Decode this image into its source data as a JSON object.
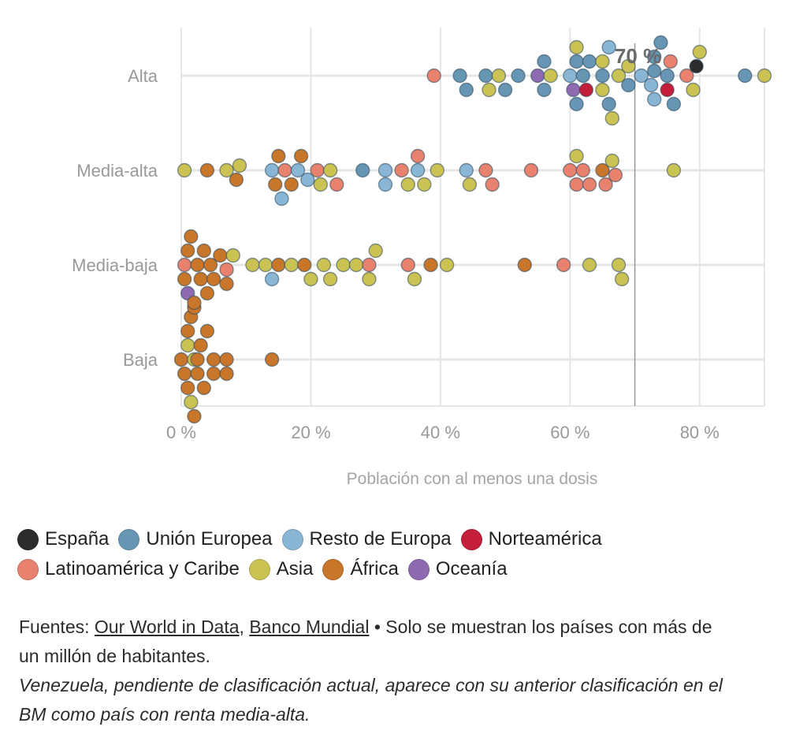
{
  "chart_data": {
    "type": "scatter",
    "title": "",
    "xlabel": "Población con al menos una dosis",
    "ylabel": "",
    "xlim": [
      0,
      90
    ],
    "categories": [
      "Alta",
      "Media-alta",
      "Media-baja",
      "Baja"
    ],
    "x_ticks": [
      "0 %",
      "20 %",
      "40 %",
      "60 %",
      "80 %"
    ],
    "x_tick_values": [
      0,
      20,
      40,
      60,
      80
    ],
    "reference_line": {
      "x": 70,
      "label": "70 %"
    },
    "grid": true,
    "legend_position": "bottom",
    "series": [
      {
        "name": "España",
        "color": "#2b2b2b",
        "points": [
          {
            "group": "Alta",
            "x": 79.5
          }
        ]
      },
      {
        "name": "Unión Europea",
        "color": "#6796b5",
        "points": [
          {
            "group": "Alta",
            "x": 43
          },
          {
            "group": "Alta",
            "x": 44
          },
          {
            "group": "Alta",
            "x": 47
          },
          {
            "group": "Alta",
            "x": 50
          },
          {
            "group": "Alta",
            "x": 52
          },
          {
            "group": "Alta",
            "x": 56
          },
          {
            "group": "Alta",
            "x": 56
          },
          {
            "group": "Alta",
            "x": 61
          },
          {
            "group": "Alta",
            "x": 61
          },
          {
            "group": "Alta",
            "x": 62
          },
          {
            "group": "Alta",
            "x": 63
          },
          {
            "group": "Alta",
            "x": 65
          },
          {
            "group": "Alta",
            "x": 66
          },
          {
            "group": "Alta",
            "x": 69
          },
          {
            "group": "Alta",
            "x": 73
          },
          {
            "group": "Alta",
            "x": 73
          },
          {
            "group": "Alta",
            "x": 74
          },
          {
            "group": "Alta",
            "x": 75
          },
          {
            "group": "Alta",
            "x": 76
          },
          {
            "group": "Alta",
            "x": 87
          },
          {
            "group": "Media-alta",
            "x": 28
          }
        ]
      },
      {
        "name": "Resto de Europa",
        "color": "#8ab6d6",
        "points": [
          {
            "group": "Alta",
            "x": 60
          },
          {
            "group": "Alta",
            "x": 66
          },
          {
            "group": "Alta",
            "x": 71
          },
          {
            "group": "Alta",
            "x": 72.5
          },
          {
            "group": "Alta",
            "x": 73
          },
          {
            "group": "Media-alta",
            "x": 14
          },
          {
            "group": "Media-alta",
            "x": 15.5
          },
          {
            "group": "Media-alta",
            "x": 18
          },
          {
            "group": "Media-alta",
            "x": 19.5
          },
          {
            "group": "Media-alta",
            "x": 31.5
          },
          {
            "group": "Media-alta",
            "x": 31.5
          },
          {
            "group": "Media-alta",
            "x": 36.5
          },
          {
            "group": "Media-alta",
            "x": 44
          },
          {
            "group": "Media-baja",
            "x": 14
          }
        ]
      },
      {
        "name": "Norteamérica",
        "color": "#c41e3a",
        "points": [
          {
            "group": "Alta",
            "x": 62.5
          },
          {
            "group": "Alta",
            "x": 75
          }
        ]
      },
      {
        "name": "Latinoamérica y Caribe",
        "color": "#e8826e",
        "points": [
          {
            "group": "Alta",
            "x": 39
          },
          {
            "group": "Alta",
            "x": 75.5
          },
          {
            "group": "Alta",
            "x": 78
          },
          {
            "group": "Media-alta",
            "x": 16
          },
          {
            "group": "Media-alta",
            "x": 21
          },
          {
            "group": "Media-alta",
            "x": 24
          },
          {
            "group": "Media-alta",
            "x": 34
          },
          {
            "group": "Media-alta",
            "x": 36.5
          },
          {
            "group": "Media-alta",
            "x": 47
          },
          {
            "group": "Media-alta",
            "x": 48
          },
          {
            "group": "Media-alta",
            "x": 54
          },
          {
            "group": "Media-alta",
            "x": 60
          },
          {
            "group": "Media-alta",
            "x": 61
          },
          {
            "group": "Media-alta",
            "x": 62
          },
          {
            "group": "Media-alta",
            "x": 63
          },
          {
            "group": "Media-alta",
            "x": 65.5
          },
          {
            "group": "Media-alta",
            "x": 67
          },
          {
            "group": "Media-baja",
            "x": 0.5
          },
          {
            "group": "Media-baja",
            "x": 7
          },
          {
            "group": "Media-baja",
            "x": 29
          },
          {
            "group": "Media-baja",
            "x": 35
          },
          {
            "group": "Media-baja",
            "x": 59
          }
        ]
      },
      {
        "name": "Asia",
        "color": "#cbc254",
        "points": [
          {
            "group": "Alta",
            "x": 47.5
          },
          {
            "group": "Alta",
            "x": 49
          },
          {
            "group": "Alta",
            "x": 57
          },
          {
            "group": "Alta",
            "x": 61
          },
          {
            "group": "Alta",
            "x": 65
          },
          {
            "group": "Alta",
            "x": 65
          },
          {
            "group": "Alta",
            "x": 66.5
          },
          {
            "group": "Alta",
            "x": 67.5
          },
          {
            "group": "Alta",
            "x": 69
          },
          {
            "group": "Alta",
            "x": 79
          },
          {
            "group": "Alta",
            "x": 80
          },
          {
            "group": "Alta",
            "x": 90
          },
          {
            "group": "Media-alta",
            "x": 0.5
          },
          {
            "group": "Media-alta",
            "x": 7
          },
          {
            "group": "Media-alta",
            "x": 9
          },
          {
            "group": "Media-alta",
            "x": 21.5
          },
          {
            "group": "Media-alta",
            "x": 23
          },
          {
            "group": "Media-alta",
            "x": 35
          },
          {
            "group": "Media-alta",
            "x": 37.5
          },
          {
            "group": "Media-alta",
            "x": 39.5
          },
          {
            "group": "Media-alta",
            "x": 44.5
          },
          {
            "group": "Media-alta",
            "x": 61
          },
          {
            "group": "Media-alta",
            "x": 66.5
          },
          {
            "group": "Media-alta",
            "x": 76
          },
          {
            "group": "Media-baja",
            "x": 8
          },
          {
            "group": "Media-baja",
            "x": 11
          },
          {
            "group": "Media-baja",
            "x": 13
          },
          {
            "group": "Media-baja",
            "x": 17
          },
          {
            "group": "Media-baja",
            "x": 20
          },
          {
            "group": "Media-baja",
            "x": 22
          },
          {
            "group": "Media-baja",
            "x": 23
          },
          {
            "group": "Media-baja",
            "x": 25
          },
          {
            "group": "Media-baja",
            "x": 27
          },
          {
            "group": "Media-baja",
            "x": 29
          },
          {
            "group": "Media-baja",
            "x": 30
          },
          {
            "group": "Media-baja",
            "x": 36
          },
          {
            "group": "Media-baja",
            "x": 41
          },
          {
            "group": "Media-baja",
            "x": 63
          },
          {
            "group": "Media-baja",
            "x": 67.5
          },
          {
            "group": "Media-baja",
            "x": 68
          },
          {
            "group": "Baja",
            "x": 1
          },
          {
            "group": "Baja",
            "x": 1.5
          },
          {
            "group": "Baja",
            "x": 2
          }
        ]
      },
      {
        "name": "África",
        "color": "#c8762a",
        "points": [
          {
            "group": "Media-alta",
            "x": 4
          },
          {
            "group": "Media-alta",
            "x": 8.5
          },
          {
            "group": "Media-alta",
            "x": 14.5
          },
          {
            "group": "Media-alta",
            "x": 15
          },
          {
            "group": "Media-alta",
            "x": 17
          },
          {
            "group": "Media-alta",
            "x": 18.5
          },
          {
            "group": "Media-alta",
            "x": 65
          },
          {
            "group": "Media-baja",
            "x": 0.5
          },
          {
            "group": "Media-baja",
            "x": 1
          },
          {
            "group": "Media-baja",
            "x": 1.5
          },
          {
            "group": "Media-baja",
            "x": 2
          },
          {
            "group": "Media-baja",
            "x": 2.5
          },
          {
            "group": "Media-baja",
            "x": 3
          },
          {
            "group": "Media-baja",
            "x": 3.5
          },
          {
            "group": "Media-baja",
            "x": 4
          },
          {
            "group": "Media-baja",
            "x": 4.5
          },
          {
            "group": "Media-baja",
            "x": 5
          },
          {
            "group": "Media-baja",
            "x": 6
          },
          {
            "group": "Media-baja",
            "x": 7
          },
          {
            "group": "Media-baja",
            "x": 15
          },
          {
            "group": "Media-baja",
            "x": 19
          },
          {
            "group": "Media-baja",
            "x": 38.5
          },
          {
            "group": "Media-baja",
            "x": 53
          },
          {
            "group": "Baja",
            "x": 0
          },
          {
            "group": "Baja",
            "x": 0.5
          },
          {
            "group": "Baja",
            "x": 1
          },
          {
            "group": "Baja",
            "x": 1
          },
          {
            "group": "Baja",
            "x": 1.5
          },
          {
            "group": "Baja",
            "x": 2
          },
          {
            "group": "Baja",
            "x": 2
          },
          {
            "group": "Baja",
            "x": 2.5
          },
          {
            "group": "Baja",
            "x": 2.5
          },
          {
            "group": "Baja",
            "x": 3
          },
          {
            "group": "Baja",
            "x": 3.5
          },
          {
            "group": "Baja",
            "x": 4
          },
          {
            "group": "Baja",
            "x": 5
          },
          {
            "group": "Baja",
            "x": 5
          },
          {
            "group": "Baja",
            "x": 7
          },
          {
            "group": "Baja",
            "x": 7
          },
          {
            "group": "Baja",
            "x": 14
          }
        ]
      },
      {
        "name": "Oceanía",
        "color": "#8e6bb0",
        "points": [
          {
            "group": "Alta",
            "x": 55
          },
          {
            "group": "Alta",
            "x": 60.5
          },
          {
            "group": "Media-baja",
            "x": 1
          }
        ]
      }
    ]
  },
  "legend_items": [
    {
      "name": "España",
      "color": "#2b2b2b"
    },
    {
      "name": "Unión Europea",
      "color": "#6796b5"
    },
    {
      "name": "Resto de Europa",
      "color": "#8ab6d6"
    },
    {
      "name": "Norteamérica",
      "color": "#c41e3a"
    },
    {
      "name": "Latinoamérica y Caribe",
      "color": "#e8826e"
    },
    {
      "name": "Asia",
      "color": "#cbc254"
    },
    {
      "name": "África",
      "color": "#c8762a"
    },
    {
      "name": "Oceanía",
      "color": "#8e6bb0"
    }
  ],
  "footer": {
    "sources_prefix": "Fuentes: ",
    "source_1": "Our World in Data",
    "separator": ", ",
    "source_2": "Banco Mundial",
    "sources_suffix": " • Solo se muestran los países con más de un millón de habitantes.",
    "note": "Venezuela, pendiente de clasificación actual, aparece con su anterior clasificación en el BM como país con renta media-alta."
  }
}
